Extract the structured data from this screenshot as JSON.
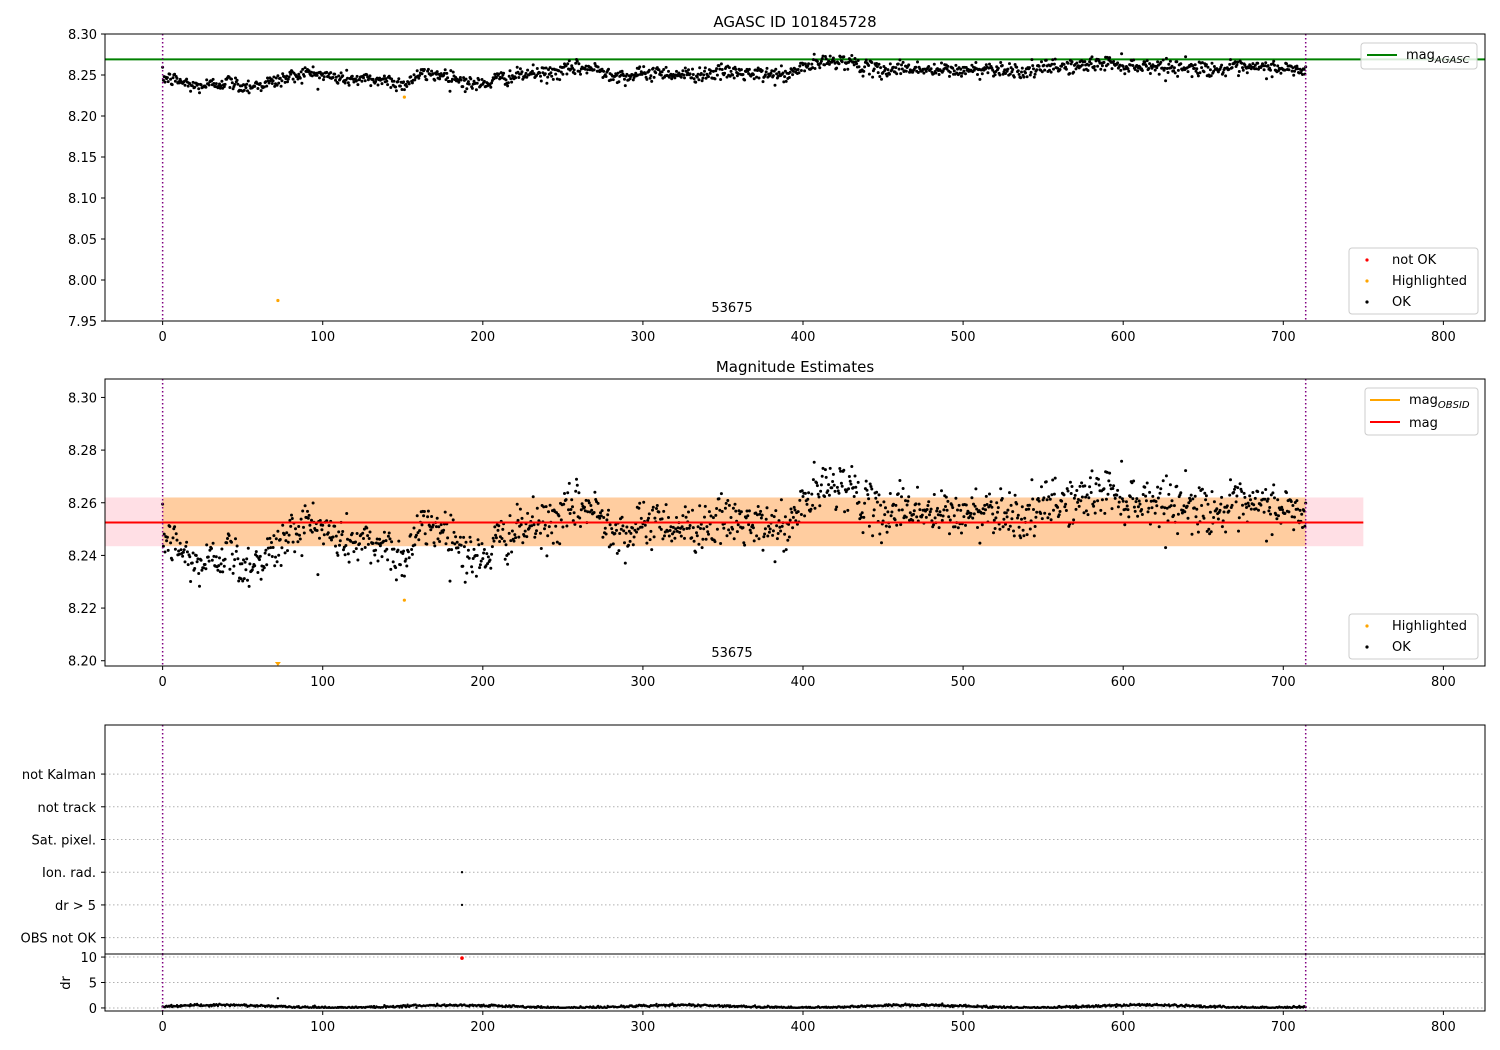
{
  "figure": {
    "background": "#ffffff"
  },
  "chart_data": [
    {
      "id": "panel1",
      "type": "scatter",
      "title": "AGASC ID 101845728",
      "xlim": [
        -36,
        826
      ],
      "ylim": [
        7.95,
        8.3
      ],
      "xticks": [
        0,
        100,
        200,
        300,
        400,
        500,
        600,
        700,
        800
      ],
      "yticks": [
        7.95,
        8.0,
        8.05,
        8.1,
        8.15,
        8.2,
        8.25,
        8.3
      ],
      "ytick_labels": [
        "7.95",
        "8.00",
        "8.05",
        "8.10",
        "8.15",
        "8.20",
        "8.25",
        "8.30"
      ],
      "grid": false,
      "vlines": [
        0,
        714
      ],
      "vline_color": "#800080",
      "obsid_label": {
        "text": "53675",
        "x": 357
      },
      "hlines": [
        {
          "name": "mag_AGASC",
          "y": 8.269,
          "color": "#008000"
        }
      ],
      "ok_series": {
        "name": "OK",
        "color": "#000000",
        "profile": {
          "x": [
            0,
            10,
            20,
            30,
            40,
            50,
            60,
            70,
            80,
            90,
            100,
            110,
            120,
            130,
            140,
            150,
            160,
            170,
            180,
            190,
            200,
            210,
            220,
            230,
            240,
            250,
            260,
            270,
            280,
            290,
            300,
            310,
            320,
            330,
            340,
            350,
            360,
            370,
            380,
            390,
            400,
            410,
            420,
            430,
            440,
            450,
            460,
            470,
            480,
            490,
            500,
            510,
            520,
            530,
            540,
            550,
            560,
            570,
            580,
            590,
            600,
            610,
            620,
            630,
            640,
            650,
            660,
            670,
            680,
            690,
            700,
            714
          ],
          "y": [
            8.247,
            8.243,
            8.236,
            8.238,
            8.242,
            8.236,
            8.238,
            8.242,
            8.248,
            8.253,
            8.25,
            8.246,
            8.245,
            8.244,
            8.244,
            8.238,
            8.25,
            8.251,
            8.249,
            8.24,
            8.238,
            8.246,
            8.248,
            8.252,
            8.251,
            8.255,
            8.259,
            8.257,
            8.252,
            8.248,
            8.251,
            8.254,
            8.251,
            8.25,
            8.252,
            8.253,
            8.253,
            8.25,
            8.251,
            8.249,
            8.26,
            8.264,
            8.268,
            8.266,
            8.258,
            8.255,
            8.259,
            8.258,
            8.255,
            8.256,
            8.255,
            8.257,
            8.258,
            8.256,
            8.254,
            8.258,
            8.261,
            8.26,
            8.263,
            8.265,
            8.262,
            8.261,
            8.261,
            8.26,
            8.259,
            8.258,
            8.257,
            8.258,
            8.258,
            8.259,
            8.258,
            8.255
          ]
        },
        "step": 0.5,
        "scatter": 0.0045
      },
      "highlighted_series": {
        "name": "Highlighted",
        "color": "#ffa500",
        "points": [
          [
            72,
            7.975
          ],
          [
            151,
            8.223
          ]
        ]
      },
      "not_ok_series": {
        "name": "not OK",
        "color": "#ff0000",
        "points": []
      },
      "legends": [
        {
          "position": "upper right",
          "entries": [
            {
              "label": "mag",
              "sub": "AGASC",
              "kind": "line",
              "color": "#008000"
            }
          ]
        },
        {
          "position": "lower right",
          "entries": [
            {
              "label": "not OK",
              "kind": "dot",
              "color": "#ff0000"
            },
            {
              "label": "Highlighted",
              "kind": "dot",
              "color": "#ffa500"
            },
            {
              "label": "OK",
              "kind": "dot",
              "color": "#000000"
            }
          ]
        }
      ]
    },
    {
      "id": "panel2",
      "type": "scatter",
      "title": "Magnitude Estimates",
      "xlim": [
        -36,
        826
      ],
      "ylim": [
        8.198,
        8.307
      ],
      "xticks": [
        0,
        100,
        200,
        300,
        400,
        500,
        600,
        700,
        800
      ],
      "yticks": [
        8.2,
        8.22,
        8.24,
        8.26,
        8.28,
        8.3
      ],
      "ytick_labels": [
        "8.20",
        "8.22",
        "8.24",
        "8.26",
        "8.28",
        "8.30"
      ],
      "grid": false,
      "vlines": [
        0,
        714
      ],
      "vline_color": "#800080",
      "obsid_label": {
        "text": "53675",
        "x": 357
      },
      "bands": [
        {
          "x": [
            -36,
            750
          ],
          "y": [
            8.2435,
            8.262
          ],
          "color": "#ffc0cb",
          "alpha": 0.5
        },
        {
          "x": [
            0,
            714
          ],
          "y": [
            8.2435,
            8.262
          ],
          "color": "#ffa500",
          "alpha": 0.3
        }
      ],
      "hlines": [
        {
          "name": "mag",
          "y": 8.2525,
          "color": "#ff0000",
          "x": [
            -36,
            750
          ]
        }
      ],
      "ok_series": {
        "name": "OK",
        "color": "#000000",
        "profile": {
          "x": [
            0,
            10,
            20,
            30,
            40,
            50,
            60,
            70,
            80,
            90,
            100,
            110,
            120,
            130,
            140,
            150,
            160,
            170,
            180,
            190,
            200,
            210,
            220,
            230,
            240,
            250,
            260,
            270,
            280,
            290,
            300,
            310,
            320,
            330,
            340,
            350,
            360,
            370,
            380,
            390,
            400,
            410,
            420,
            430,
            440,
            450,
            460,
            470,
            480,
            490,
            500,
            510,
            520,
            530,
            540,
            550,
            560,
            570,
            580,
            590,
            600,
            610,
            620,
            630,
            640,
            650,
            660,
            670,
            680,
            690,
            700,
            714
          ],
          "y": [
            8.247,
            8.243,
            8.236,
            8.238,
            8.242,
            8.236,
            8.238,
            8.242,
            8.248,
            8.253,
            8.25,
            8.246,
            8.245,
            8.244,
            8.244,
            8.238,
            8.25,
            8.251,
            8.249,
            8.24,
            8.238,
            8.246,
            8.248,
            8.252,
            8.251,
            8.255,
            8.259,
            8.257,
            8.252,
            8.248,
            8.251,
            8.254,
            8.251,
            8.25,
            8.252,
            8.253,
            8.253,
            8.25,
            8.251,
            8.249,
            8.26,
            8.264,
            8.268,
            8.266,
            8.258,
            8.255,
            8.259,
            8.258,
            8.255,
            8.256,
            8.255,
            8.257,
            8.258,
            8.256,
            8.254,
            8.258,
            8.261,
            8.26,
            8.263,
            8.265,
            8.262,
            8.261,
            8.261,
            8.26,
            8.259,
            8.258,
            8.257,
            8.258,
            8.258,
            8.259,
            8.258,
            8.255
          ]
        },
        "step": 0.5,
        "scatter": 0.0045
      },
      "highlighted_series": {
        "name": "Highlighted",
        "color": "#ffa500",
        "points": [
          [
            151,
            8.223
          ]
        ],
        "offscale_markers": [
          [
            72,
            8.198
          ]
        ]
      },
      "legends": [
        {
          "position": "upper right",
          "entries": [
            {
              "label": "mag",
              "sub": "OBSID",
              "kind": "line",
              "color": "#ffa500"
            },
            {
              "label": "mag",
              "kind": "line",
              "color": "#ff0000"
            }
          ]
        },
        {
          "position": "lower right",
          "entries": [
            {
              "label": "Highlighted",
              "kind": "dot",
              "color": "#ffa500"
            },
            {
              "label": "OK",
              "kind": "dot",
              "color": "#000000"
            }
          ]
        }
      ]
    },
    {
      "id": "panel3",
      "type": "scatter",
      "title": "",
      "xlim": [
        -36,
        826
      ],
      "ylim": [
        -0.5,
        6.5
      ],
      "grid": "y-dotted",
      "vlines": [
        0,
        714
      ],
      "vline_color": "#800080",
      "flag_labels": [
        "OBS not OK",
        "dr > 5",
        "Ion. rad.",
        "Sat. pixel.",
        "not track",
        "not Kalman"
      ],
      "flag_values": [
        0,
        1,
        2,
        3,
        4,
        5
      ],
      "flag_points": [
        {
          "flag": "dr > 5",
          "x": 187
        },
        {
          "flag": "Ion. rad.",
          "x": 187
        }
      ]
    },
    {
      "id": "panel4",
      "type": "scatter",
      "ylabel": "dr",
      "xlim": [
        -36,
        826
      ],
      "ylim": [
        -0.6,
        10.6
      ],
      "xticks": [
        0,
        100,
        200,
        300,
        400,
        500,
        600,
        700,
        800
      ],
      "yticks": [
        0,
        5,
        10
      ],
      "ytick_labels": [
        "0",
        "5",
        "10"
      ],
      "grid": "y-dotted",
      "vlines": [
        0,
        714
      ],
      "vline_color": "#800080",
      "dr_series": {
        "name": "dr",
        "color": "#000000",
        "step": 0.5,
        "base": 0.3,
        "amp": 0.25
      },
      "highlighted_points": [
        [
          72,
          1.9
        ]
      ],
      "not_ok_points": [
        [
          187,
          9.8
        ]
      ]
    }
  ]
}
